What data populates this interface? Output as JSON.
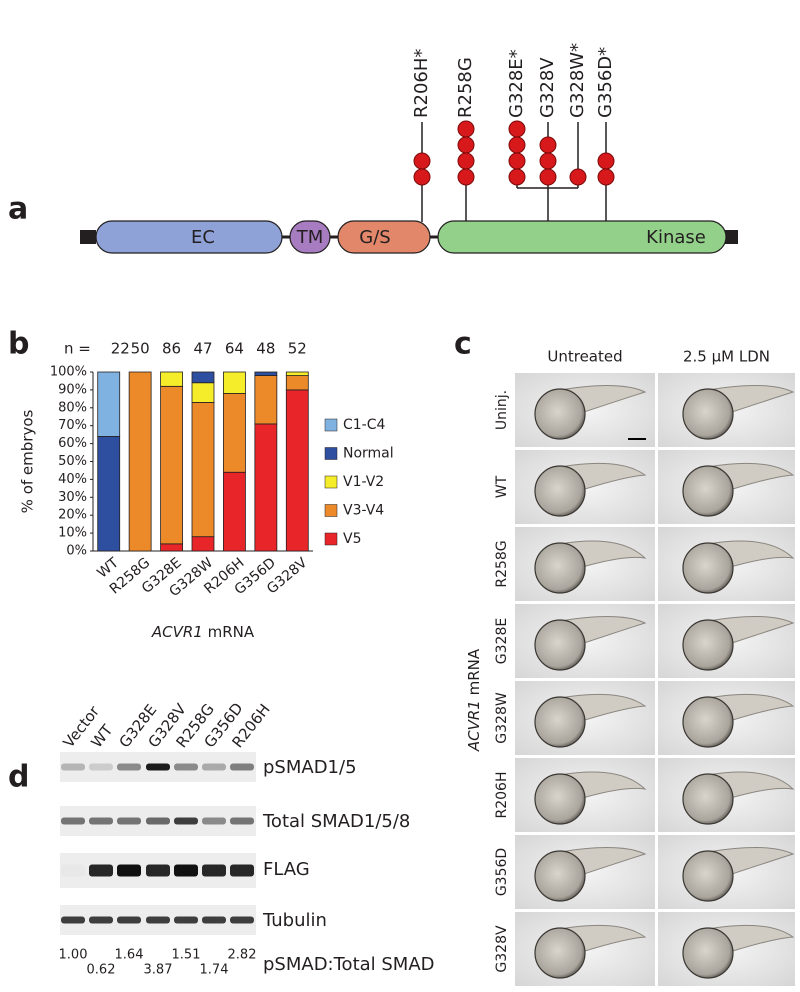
{
  "panel_letters": [
    "a",
    "b",
    "c",
    "d"
  ],
  "panel_a": {
    "domains": [
      "EC",
      "TM",
      "G/S",
      "Kinase"
    ],
    "mutations": [
      {
        "label": "R206H*",
        "dots": 2
      },
      {
        "label": "R258G",
        "dots": 4
      },
      {
        "label": "G328E*",
        "dots": 4
      },
      {
        "label": "G328V",
        "dots": 3
      },
      {
        "label": "G328W*",
        "dots": 1
      },
      {
        "label": "G356D*",
        "dots": 2
      }
    ]
  },
  "chart_data": {
    "type": "bar",
    "stacked": true,
    "y_label": "% of embryos",
    "x_label_gene": "ACVR1",
    "x_label_rest": "mRNA",
    "n_prefix": "n =",
    "n": [
      22,
      50,
      86,
      47,
      64,
      48,
      52
    ],
    "categories": [
      "WT",
      "R258G",
      "G328E",
      "G328W",
      "R206H",
      "G356D",
      "G328V"
    ],
    "series": [
      {
        "name": "V5",
        "color": "#e8262a",
        "values": [
          0,
          0,
          4,
          8,
          44,
          71,
          90
        ]
      },
      {
        "name": "V3-V4",
        "color": "#ec8a2a",
        "values": [
          0,
          100,
          88,
          75,
          44,
          27,
          8
        ]
      },
      {
        "name": "V1-V2",
        "color": "#f5ec2a",
        "values": [
          0,
          0,
          8,
          11,
          12,
          0,
          2
        ]
      },
      {
        "name": "Normal",
        "color": "#2e4fa0",
        "values": [
          64,
          0,
          0,
          6,
          0,
          2,
          0
        ]
      },
      {
        "name": "C1-C4",
        "color": "#7fb2e0",
        "values": [
          36,
          0,
          0,
          0,
          0,
          0,
          0
        ]
      }
    ],
    "ylim": [
      0,
      100
    ],
    "yticks": [
      {
        "value": 0,
        "label": "0%"
      },
      {
        "value": 10,
        "label": "10%"
      },
      {
        "value": 20,
        "label": "20%"
      },
      {
        "value": 30,
        "label": "30%"
      },
      {
        "value": 40,
        "label": "40%"
      },
      {
        "value": 50,
        "label": "50%"
      },
      {
        "value": 60,
        "label": "60%"
      },
      {
        "value": 70,
        "label": "70%"
      },
      {
        "value": 80,
        "label": "80%"
      },
      {
        "value": 90,
        "label": "90%"
      },
      {
        "value": 100,
        "label": "100%"
      }
    ],
    "legend": "right"
  },
  "panel_c": {
    "columns": [
      "Untreated",
      "2.5 μM LDN"
    ],
    "rows": [
      "Uninj.",
      "WT",
      "R258G",
      "G328E",
      "G328W",
      "R206H",
      "G356D",
      "G328V"
    ],
    "side_gene": "ACVR1",
    "side_rest": "mRNA"
  },
  "panel_d": {
    "lanes": [
      "Vector",
      "WT",
      "G328E",
      "G328V",
      "R258G",
      "G356D",
      "R206H"
    ],
    "blots": [
      "pSMAD1/5",
      "Total SMAD1/5/8",
      "FLAG",
      "Tubulin"
    ],
    "ratios": [
      "1.00",
      "0.62",
      "1.64",
      "3.87",
      "1.51",
      "1.74",
      "2.82"
    ],
    "ratio_label": "pSMAD:Total SMAD"
  }
}
